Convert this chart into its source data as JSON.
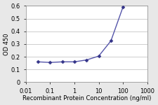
{
  "x": [
    0.032,
    0.1,
    0.32,
    1,
    3.2,
    10,
    32,
    100
  ],
  "y": [
    0.16,
    0.155,
    0.16,
    0.16,
    0.175,
    0.205,
    0.325,
    0.59
  ],
  "line_color": "#5555aa",
  "marker_color": "#333388",
  "marker_style": "D",
  "marker_size": 2.5,
  "line_width": 1.0,
  "xlabel": "Recombinant Protein Concentration (ng/ml)",
  "ylabel": "OD 450",
  "xlim": [
    0.01,
    1000
  ],
  "ylim": [
    0,
    0.6
  ],
  "yticks": [
    0,
    0.1,
    0.2,
    0.3,
    0.4,
    0.5,
    0.6
  ],
  "xtick_values": [
    0.01,
    0.1,
    1,
    10,
    100,
    1000
  ],
  "xtick_labels": [
    "0.01",
    "0.1",
    "1",
    "10",
    "100",
    "1000"
  ],
  "figure_facecolor": "#e8e8e8",
  "plot_facecolor": "#ffffff",
  "xlabel_fontsize": 6.0,
  "ylabel_fontsize": 6.0,
  "tick_fontsize": 6.0,
  "grid_color": "#bbbbbb",
  "spine_color": "#888888"
}
